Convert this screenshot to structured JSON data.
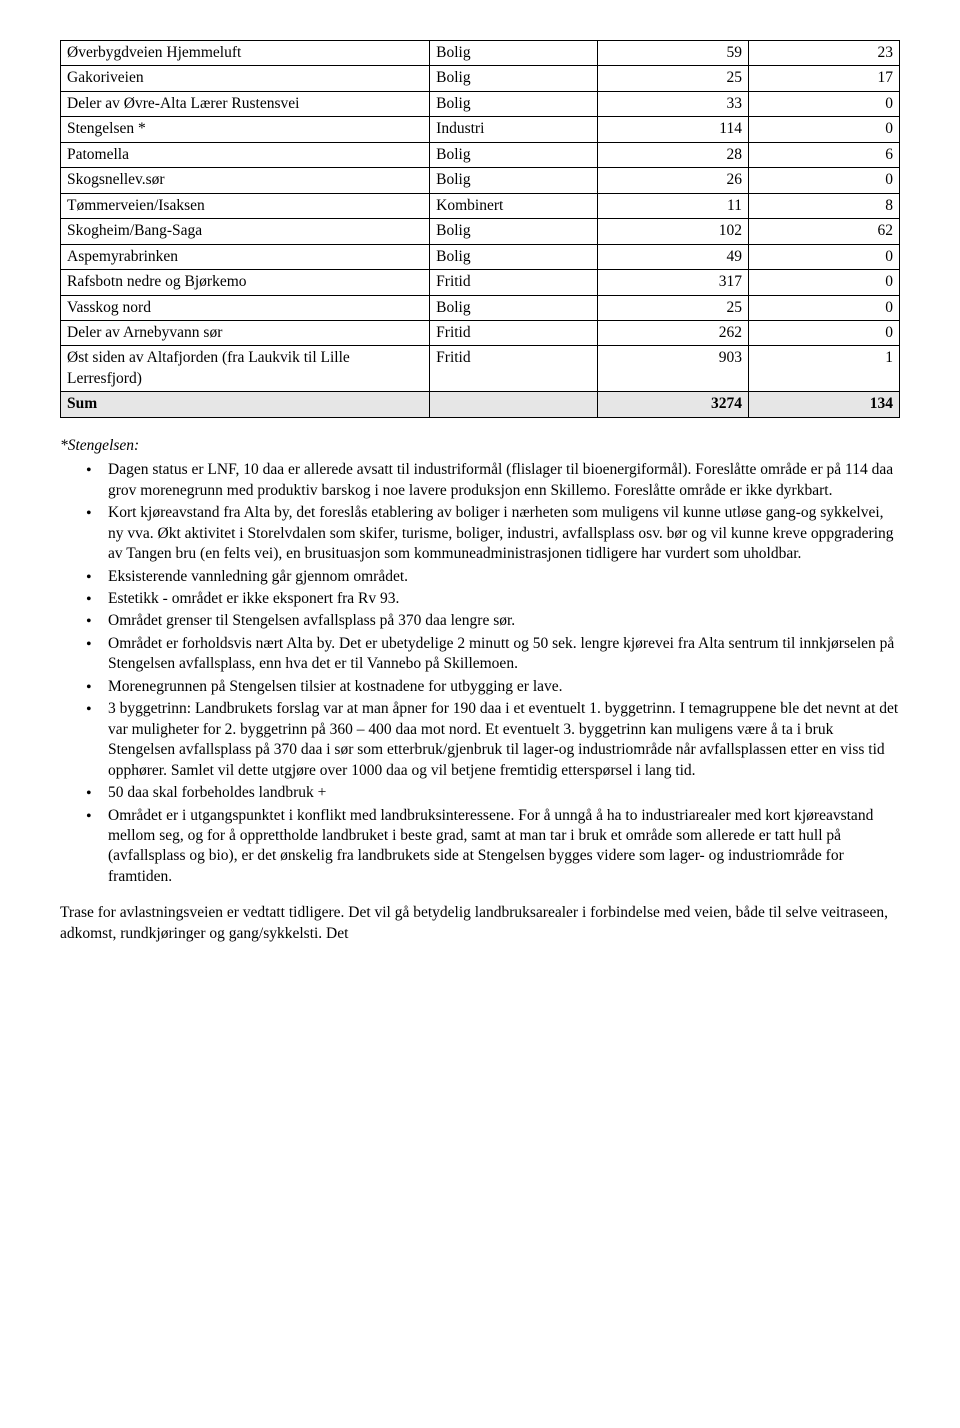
{
  "table": {
    "rows": [
      {
        "name": "Øverbygdveien Hjemmeluft",
        "type": "Bolig",
        "v1": "59",
        "v2": "23"
      },
      {
        "name": "Gakoriveien",
        "type": "Bolig",
        "v1": "25",
        "v2": "17"
      },
      {
        "name": "Deler av Øvre-Alta Lærer Rustensvei",
        "type": "Bolig",
        "v1": "33",
        "v2": "0"
      },
      {
        "name": "Stengelsen *",
        "type": "Industri",
        "v1": "114",
        "v2": "0"
      },
      {
        "name": "Patomella",
        "type": "Bolig",
        "v1": "28",
        "v2": "6"
      },
      {
        "name": "Skogsnellev.sør",
        "type": "Bolig",
        "v1": "26",
        "v2": "0"
      },
      {
        "name": "Tømmerveien/Isaksen",
        "type": "Kombinert",
        "v1": "11",
        "v2": "8"
      },
      {
        "name": "Skogheim/Bang-Saga",
        "type": "Bolig",
        "v1": "102",
        "v2": "62"
      },
      {
        "name": "Aspemyrabrinken",
        "type": "Bolig",
        "v1": "49",
        "v2": "0"
      },
      {
        "name": "Rafsbotn nedre og Bjørkemo",
        "type": "Fritid",
        "v1": "317",
        "v2": "0"
      },
      {
        "name": "Vasskog nord",
        "type": "Bolig",
        "v1": "25",
        "v2": "0"
      },
      {
        "name": "Deler av Arnebyvann sør",
        "type": "Fritid",
        "v1": "262",
        "v2": "0"
      },
      {
        "name": "Øst siden av Altafjorden (fra Laukvik til Lille Lerresfjord)",
        "type": "Fritid",
        "v1": "903",
        "v2": "1"
      }
    ],
    "sum": {
      "label": "Sum",
      "v1": "3274",
      "v2": "134"
    }
  },
  "stengelsen_label": "*Stengelsen:",
  "bullets": [
    "Dagen status er LNF, 10 daa er allerede avsatt til industriformål (flislager til bioenergiformål). Foreslåtte område er på 114 daa grov morenegrunn med produktiv barskog i noe lavere produksjon enn Skillemo. Foreslåtte område er ikke dyrkbart.",
    "Kort kjøreavstand fra Alta by, det foreslås etablering av boliger i nærheten som muligens vil kunne utløse gang-og sykkelvei, ny vva. Økt aktivitet i Storelvdalen som skifer, turisme, boliger, industri, avfallsplass osv. bør og vil kunne kreve oppgradering av Tangen bru (en felts vei), en brusituasjon som kommuneadministrasjonen tidligere har vurdert som uholdbar.",
    "Eksisterende vannledning går gjennom området.",
    "Estetikk - området er ikke eksponert fra Rv 93.",
    "Området grenser til Stengelsen avfallsplass på 370 daa lengre sør.",
    "Området er forholdsvis nært Alta by. Det er ubetydelige 2 minutt og 50 sek. lengre kjørevei fra Alta sentrum til innkjørselen på Stengelsen avfallsplass, enn hva det er til Vannebo på Skillemoen.",
    "Morenegrunnen på Stengelsen tilsier at kostnadene for utbygging er lave.",
    "3 byggetrinn: Landbrukets forslag var at man åpner for 190 daa i et eventuelt 1. byggetrinn. I temagruppene ble det nevnt at det var muligheter for 2. byggetrinn på 360 – 400 daa mot nord. Et eventuelt 3. byggetrinn kan muligens være å ta i bruk Stengelsen avfallsplass på 370 daa i sør som etterbruk/gjenbruk til lager-og industriområde når avfallsplassen etter en viss tid opphører. Samlet vil dette utgjøre over 1000 daa og vil betjene fremtidig etterspørsel i lang tid.",
    "50 daa skal forbeholdes landbruk +",
    "Området er i utgangspunktet i konflikt med landbruksinteressene. For å unngå å ha to industriarealer med kort kjøreavstand mellom seg, og for å opprettholde landbruket i beste grad, samt at man tar i bruk et område som allerede er tatt hull på (avfallsplass og bio), er det ønskelig fra landbrukets side at Stengelsen bygges videre som lager- og industriområde for framtiden."
  ],
  "closing_para": "Trase for avlastningsveien er vedtatt tidligere. Det vil gå betydelig landbruksarealer i forbindelse med veien, både til selve veitraseen, adkomst, rundkjøringer og gang/sykkelsti. Det"
}
